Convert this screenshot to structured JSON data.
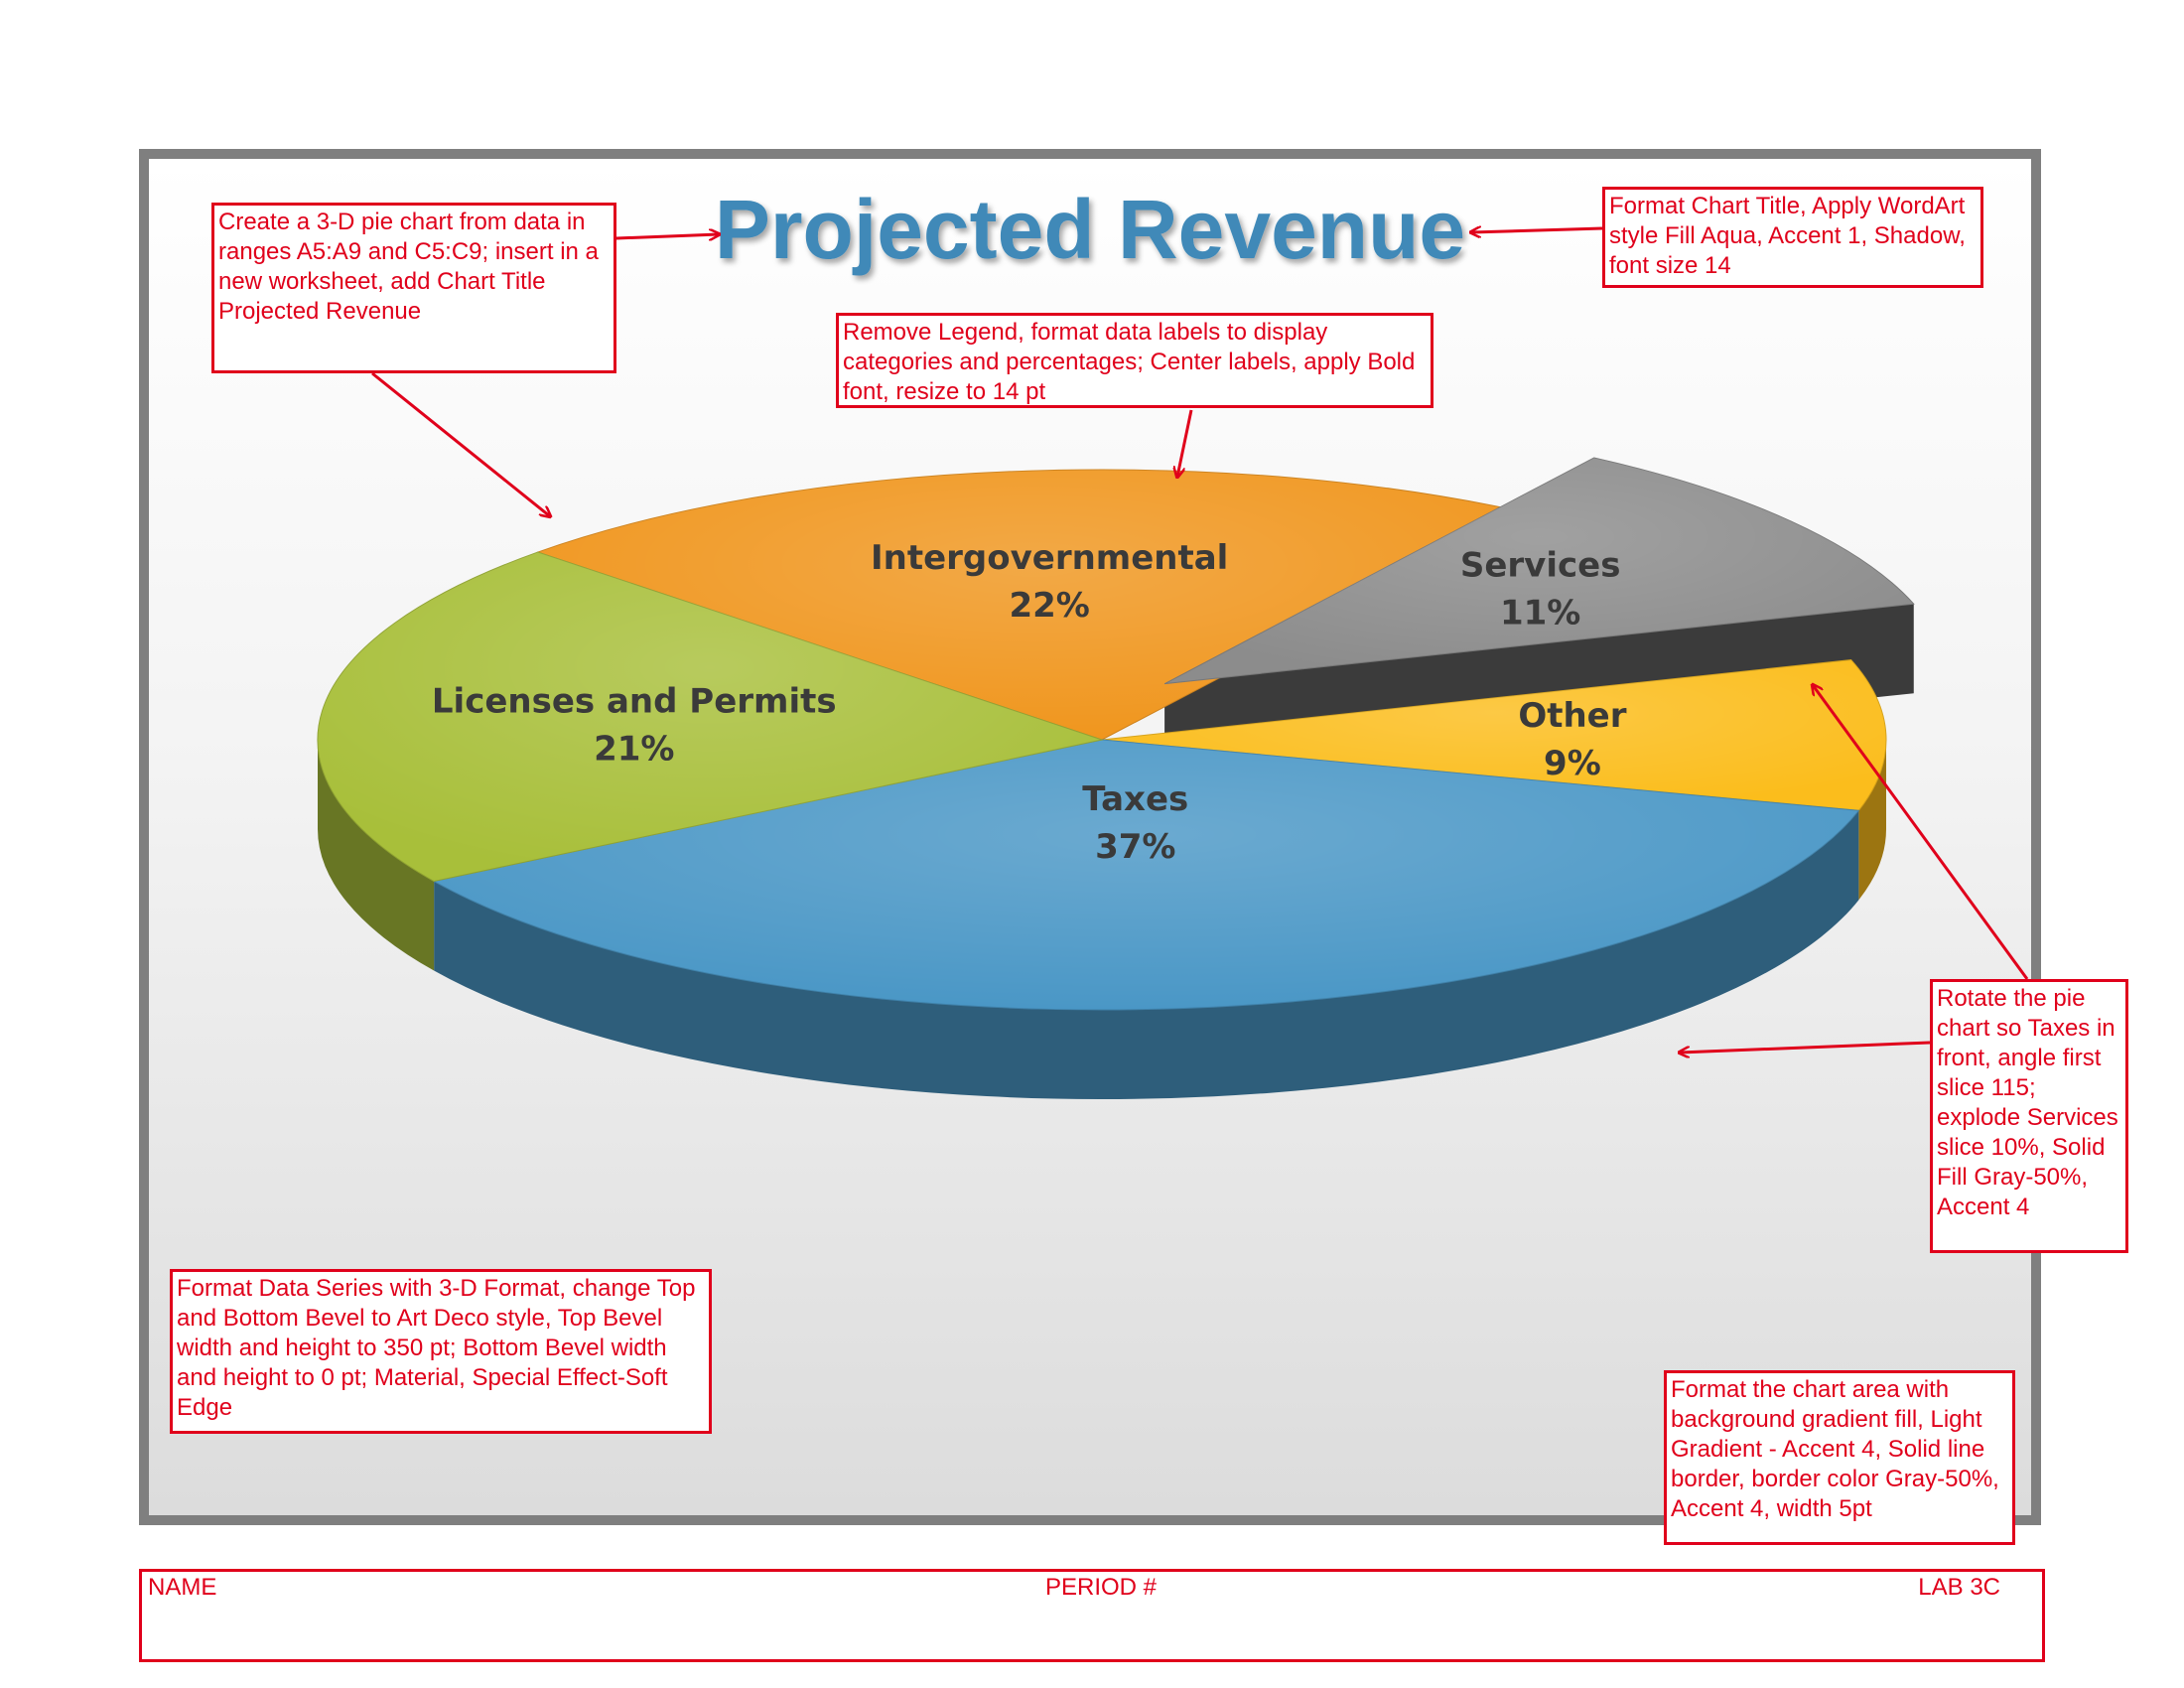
{
  "chart_data": {
    "type": "pie",
    "title": "Projected Revenue",
    "categories": [
      "Intergovernmental",
      "Services",
      "Other",
      "Taxes",
      "Licenses and Permits"
    ],
    "values": [
      22,
      11,
      9,
      37,
      21
    ],
    "value_labels": [
      "22%",
      "11%",
      "9%",
      "37%",
      "21%"
    ],
    "exploded": "Services",
    "legend": "none",
    "three_d": true
  },
  "colors": {
    "Intergovernmental": "#f0961e",
    "Services": "#8c8c8c",
    "Other": "#fbbd1c",
    "Taxes": "#4a97c6",
    "Licenses and Permits": "#a8bf3a",
    "title": "#3f89b8",
    "annotation": "#e0001b",
    "chart_border": "#7f7f7f"
  },
  "annotations": {
    "create": "Create a 3-D pie chart from data in ranges A5:A9 and C5:C9; insert in a new worksheet, add Chart Title Projected Revenue",
    "title_format": "Format Chart Title, Apply WordArt style Fill Aqua, Accent 1, Shadow, font size 14",
    "labels": "Remove Legend, format data labels to display categories and percentages; Center labels, apply Bold font, resize to 14 pt",
    "rotate": "Rotate the pie chart so Taxes in front, angle first slice 115; explode Services slice 10%, Solid Fill Gray-50%, Accent 4",
    "series_format": "Format Data Series with 3-D Format, change Top and Bottom Bevel to Art Deco style, Top Bevel width and height to 350 pt; Bottom Bevel width and height to 0 pt; Material, Special Effect-Soft Edge",
    "area_format": "Format the chart area with background gradient fill, Light Gradient - Accent 4, Solid line border, border color Gray-50%, Accent 4, width 5pt"
  },
  "footer": {
    "name": "NAME",
    "period": "PERIOD #",
    "lab": "LAB 3C"
  }
}
